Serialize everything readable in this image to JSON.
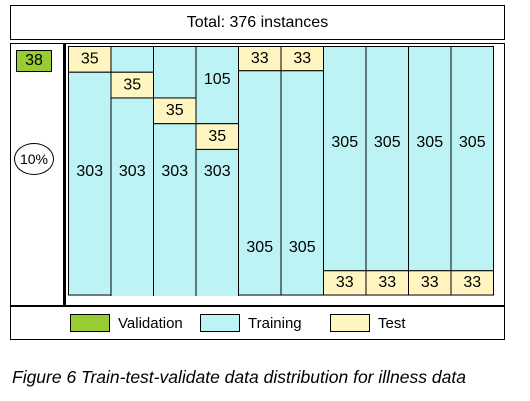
{
  "title": "Total: 376 instances",
  "validation": {
    "value": "38",
    "percent": "10%"
  },
  "legend": [
    {
      "label": "Validation",
      "color": "#99cc33"
    },
    {
      "label": "Training",
      "color": "#bdf3f5"
    },
    {
      "label": "Test",
      "color": "#fff5c0"
    }
  ],
  "caption": "Figure 6 Train-test-validate data distribution for illness data",
  "colors": {
    "training": "#bdf3f5",
    "test": "#fff5c0",
    "validation": "#99cc33"
  },
  "chart_data": {
    "type": "table",
    "folds": [
      {
        "test": 35,
        "train_top": 0,
        "train_bottom": 303
      },
      {
        "test": 35,
        "train_top": 35,
        "train_bottom": 303
      },
      {
        "test": 35,
        "train_top": 70,
        "train_bottom": 303
      },
      {
        "test": 35,
        "train_top": 105,
        "train_bottom": 303
      },
      {
        "test": 33,
        "train_top": 0,
        "train_bottom": 305
      },
      {
        "test": 33,
        "train_top": 0,
        "train_bottom": 305
      },
      {
        "test": 33,
        "train_top": 305,
        "train_bottom": 0
      },
      {
        "test": 33,
        "train_top": 305,
        "train_bottom": 0
      },
      {
        "test": 33,
        "train_top": 305,
        "train_bottom": 0
      },
      {
        "test": 33,
        "train_top": 305,
        "train_bottom": 0
      }
    ]
  }
}
